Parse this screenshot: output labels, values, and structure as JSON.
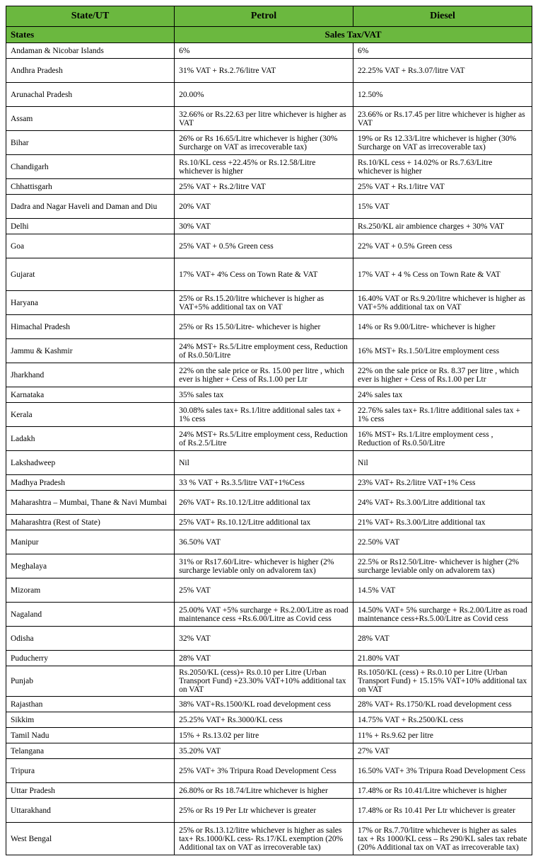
{
  "colors": {
    "header_bg": "#6bb83f",
    "border": "#000000",
    "text": "#000000",
    "background": "#ffffff"
  },
  "typography": {
    "family": "Times New Roman",
    "header_size_pt": 14,
    "body_size_pt": 11.5
  },
  "table": {
    "columns": [
      "State/UT",
      "Petrol",
      "Diesel"
    ],
    "section": {
      "label": "States",
      "span_label": "Sales Tax/VAT"
    },
    "rows": [
      {
        "state": "Andaman & Nicobar Islands",
        "petrol": "6%",
        "diesel": "6%",
        "h": "h1"
      },
      {
        "state": "Andhra Pradesh",
        "petrol": "31% VAT + Rs.2.76/litre VAT",
        "diesel": "22.25% VAT + Rs.3.07/litre VAT",
        "h": "h2"
      },
      {
        "state": "Arunachal Pradesh",
        "petrol": "20.00%",
        "diesel": "12.50%",
        "h": "h2"
      },
      {
        "state": "Assam",
        "petrol": "32.66% or Rs.22.63 per litre whichever is higher as VAT",
        "diesel": "23.66% or Rs.17.45 per litre whichever is higher as  VAT",
        "h": "h2"
      },
      {
        "state": "Bihar",
        "petrol": "26% or Rs 16.65/Litre whichever is higher (30% Surcharge on VAT as irrecoverable tax)",
        "diesel": "19% or Rs 12.33/Litre whichever is higher (30% Surcharge on VAT as irrecoverable tax)",
        "h": "h2"
      },
      {
        "state": "Chandigarh",
        "petrol": "Rs.10/KL cess +22.45% or Rs.12.58/Litre whichever is higher",
        "diesel": "Rs.10/KL cess + 14.02% or Rs.7.63/Litre whichever is higher",
        "h": "h2"
      },
      {
        "state": "Chhattisgarh",
        "petrol": "25% VAT + Rs.2/litre VAT",
        "diesel": "25% VAT + Rs.1/litre VAT",
        "h": "h1"
      },
      {
        "state": "Dadra and Nagar Haveli and Daman and Diu",
        "petrol": "20% VAT",
        "diesel": "15% VAT",
        "h": "h2"
      },
      {
        "state": "Delhi",
        "petrol": "30% VAT",
        "diesel": "Rs.250/KL air ambience charges + 30% VAT",
        "h": "h1"
      },
      {
        "state": "Goa",
        "petrol": "25% VAT + 0.5% Green cess",
        "diesel": "22% VAT + 0.5% Green cess",
        "h": "h2"
      },
      {
        "state": "Gujarat",
        "petrol": "17% VAT+ 4% Cess on Town Rate & VAT",
        "diesel": "17% VAT + 4 % Cess on Town Rate & VAT",
        "h": "h3"
      },
      {
        "state": "Haryana",
        "petrol": "25% or Rs.15.20/litre whichever is higher as VAT+5% additional tax on VAT",
        "diesel": "16.40% VAT or Rs.9.20/litre whichever is higher as VAT+5% additional tax on VAT",
        "h": "h2"
      },
      {
        "state": "Himachal Pradesh",
        "petrol": "25% or Rs 15.50/Litre- whichever is higher",
        "diesel": "14% or Rs 9.00/Litre- whichever is higher",
        "h": "h2"
      },
      {
        "state": "Jammu & Kashmir",
        "petrol": "24% MST+ Rs.5/Litre employment cess, Reduction of Rs.0.50/Litre",
        "diesel": "16% MST+ Rs.1.50/Litre employment cess",
        "h": "h2"
      },
      {
        "state": "Jharkhand",
        "petrol": "22% on the sale price or Rs. 15.00 per litre , which ever is higher + Cess of Rs.1.00 per Ltr",
        "diesel": "22% on the sale price or Rs. 8.37 per litre , which ever is higher + Cess of Rs.1.00 per Ltr",
        "h": "h2"
      },
      {
        "state": "Karnataka",
        "petrol": "35% sales tax",
        "diesel": "24% sales tax",
        "h": "h1"
      },
      {
        "state": "Kerala",
        "petrol": "30.08% sales tax+ Rs.1/litre additional sales tax + 1% cess",
        "diesel": "22.76% sales tax+ Rs.1/litre additional sales tax + 1% cess",
        "h": "h2"
      },
      {
        "state": "Ladakh",
        "petrol": "24% MST+ Rs.5/Litre employment cess, Reduction of Rs.2.5/Litre",
        "diesel": "16% MST+ Rs.1/Litre employment cess , Reduction of Rs.0.50/Litre",
        "h": "h2"
      },
      {
        "state": "Lakshadweep",
        "petrol": "Nil",
        "diesel": "Nil",
        "h": "h2"
      },
      {
        "state": "Madhya Pradesh",
        "petrol": "33 % VAT + Rs.3.5/litre VAT+1%Cess",
        "diesel": "23% VAT+ Rs.2/litre VAT+1% Cess",
        "h": "h1"
      },
      {
        "state": "Maharashtra – Mumbai, Thane & Navi Mumbai",
        "petrol": "26% VAT+ Rs.10.12/Litre additional tax",
        "diesel": "24% VAT+ Rs.3.00/Litre additional tax",
        "h": "h2"
      },
      {
        "state": "Maharashtra (Rest of State)",
        "petrol": "25% VAT+ Rs.10.12/Litre additional tax",
        "diesel": "21% VAT+ Rs.3.00/Litre additional tax",
        "h": "h1"
      },
      {
        "state": "Manipur",
        "petrol": "36.50% VAT",
        "diesel": "22.50% VAT",
        "h": "h2"
      },
      {
        "state": "Meghalaya",
        "petrol": "31% or Rs17.60/Litre- whichever is higher (2% surcharge leviable only on advalorem tax)",
        "diesel": "22.5% or Rs12.50/Litre- whichever is higher (2% surcharge leviable only on advalorem tax)",
        "h": "h2"
      },
      {
        "state": "Mizoram",
        "petrol": "25% VAT",
        "diesel": "14.5% VAT",
        "h": "h2"
      },
      {
        "state": "Nagaland",
        "petrol": "25.00% VAT +5% surcharge + Rs.2.00/Litre as road maintenance cess +Rs.6.00/Litre as Covid cess",
        "diesel": "14.50% VAT+ 5% surcharge + Rs.2.00/Litre as road maintenance cess+Rs.5.00/Litre as Covid cess",
        "h": "h2"
      },
      {
        "state": "Odisha",
        "petrol": "32% VAT",
        "diesel": "28% VAT",
        "h": "h2"
      },
      {
        "state": "Puducherry",
        "petrol": "28% VAT",
        "diesel": "21.80% VAT",
        "h": "h1"
      },
      {
        "state": "Punjab",
        "petrol": "Rs.2050/KL (cess)+ Rs.0.10 per Litre (Urban Transport Fund) +23.30% VAT+10% additional tax on VAT",
        "diesel": "Rs.1050/KL (cess) + Rs.0.10 per Litre (Urban Transport Fund) + 15.15% VAT+10% additional tax on VAT",
        "h": "h2"
      },
      {
        "state": "Rajasthan",
        "petrol": "38% VAT+Rs.1500/KL road development cess",
        "diesel": "28% VAT+ Rs.1750/KL road development cess",
        "h": "h1"
      },
      {
        "state": "Sikkim",
        "petrol": "25.25% VAT+ Rs.3000/KL cess",
        "diesel": "14.75% VAT + Rs.2500/KL cess",
        "h": "h1"
      },
      {
        "state": "Tamil Nadu",
        "petrol": "15% + Rs.13.02 per litre",
        "diesel": "11%  + Rs.9.62 per litre",
        "h": "h1"
      },
      {
        "state": "Telangana",
        "petrol": "35.20% VAT",
        "diesel": "27% VAT",
        "h": "h1"
      },
      {
        "state": "Tripura",
        "petrol": "25% VAT+ 3% Tripura Road Development Cess",
        "diesel": "16.50% VAT+ 3% Tripura Road Development Cess",
        "h": "h2"
      },
      {
        "state": "Uttar Pradesh",
        "petrol": "26.80% or Rs 18.74/Litre whichever is higher",
        "diesel": "17.48% or Rs 10.41/Litre whichever is higher",
        "h": "h1"
      },
      {
        "state": "Uttarakhand",
        "petrol": "25% or Rs 19 Per Ltr whichever is greater",
        "diesel": "17.48% or Rs 10.41 Per Ltr whichever is greater",
        "h": "h2"
      },
      {
        "state": "West Bengal",
        "petrol": "25% or Rs.13.12/litre whichever is higher as sales tax+ Rs.1000/KL cess- Rs.17/KL exemption (20% Additional tax on VAT as irrecoverable tax)",
        "diesel": "17% or Rs.7.70/litre whichever is higher as sales tax + Rs 1000/KL cess – Rs 290/KL sales tax rebate (20% Additional tax on VAT as irrecoverable tax)",
        "h": "h3"
      }
    ]
  }
}
